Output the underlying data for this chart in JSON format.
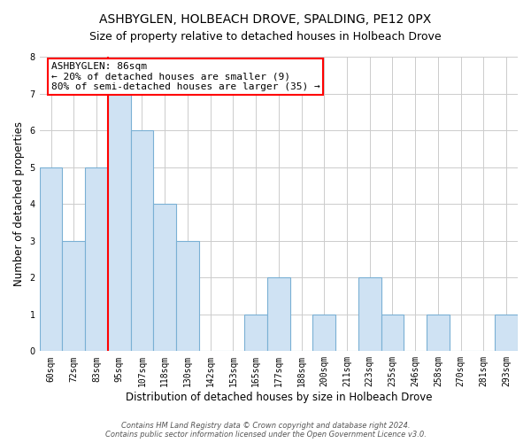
{
  "title": "ASHBYGLEN, HOLBEACH DROVE, SPALDING, PE12 0PX",
  "subtitle": "Size of property relative to detached houses in Holbeach Drove",
  "xlabel": "Distribution of detached houses by size in Holbeach Drove",
  "ylabel": "Number of detached properties",
  "bin_labels": [
    "60sqm",
    "72sqm",
    "83sqm",
    "95sqm",
    "107sqm",
    "118sqm",
    "130sqm",
    "142sqm",
    "153sqm",
    "165sqm",
    "177sqm",
    "188sqm",
    "200sqm",
    "211sqm",
    "223sqm",
    "235sqm",
    "246sqm",
    "258sqm",
    "270sqm",
    "281sqm",
    "293sqm"
  ],
  "bar_heights": [
    5,
    3,
    5,
    7,
    6,
    4,
    3,
    0,
    0,
    1,
    2,
    0,
    1,
    0,
    2,
    1,
    0,
    1,
    0,
    0,
    1
  ],
  "bar_color": "#cfe2f3",
  "bar_edge_color": "#7ab0d4",
  "vline_x_idx": 2,
  "vline_color": "red",
  "annotation_text": "ASHBYGLEN: 86sqm\n← 20% of detached houses are smaller (9)\n80% of semi-detached houses are larger (35) →",
  "ylim": [
    0,
    8
  ],
  "yticks": [
    0,
    1,
    2,
    3,
    4,
    5,
    6,
    7,
    8
  ],
  "footnote": "Contains HM Land Registry data © Crown copyright and database right 2024.\nContains public sector information licensed under the Open Government Licence v3.0.",
  "title_fontsize": 10,
  "xlabel_fontsize": 8.5,
  "ylabel_fontsize": 8.5,
  "tick_fontsize": 7,
  "annotation_fontsize": 8,
  "footnote_fontsize": 6
}
